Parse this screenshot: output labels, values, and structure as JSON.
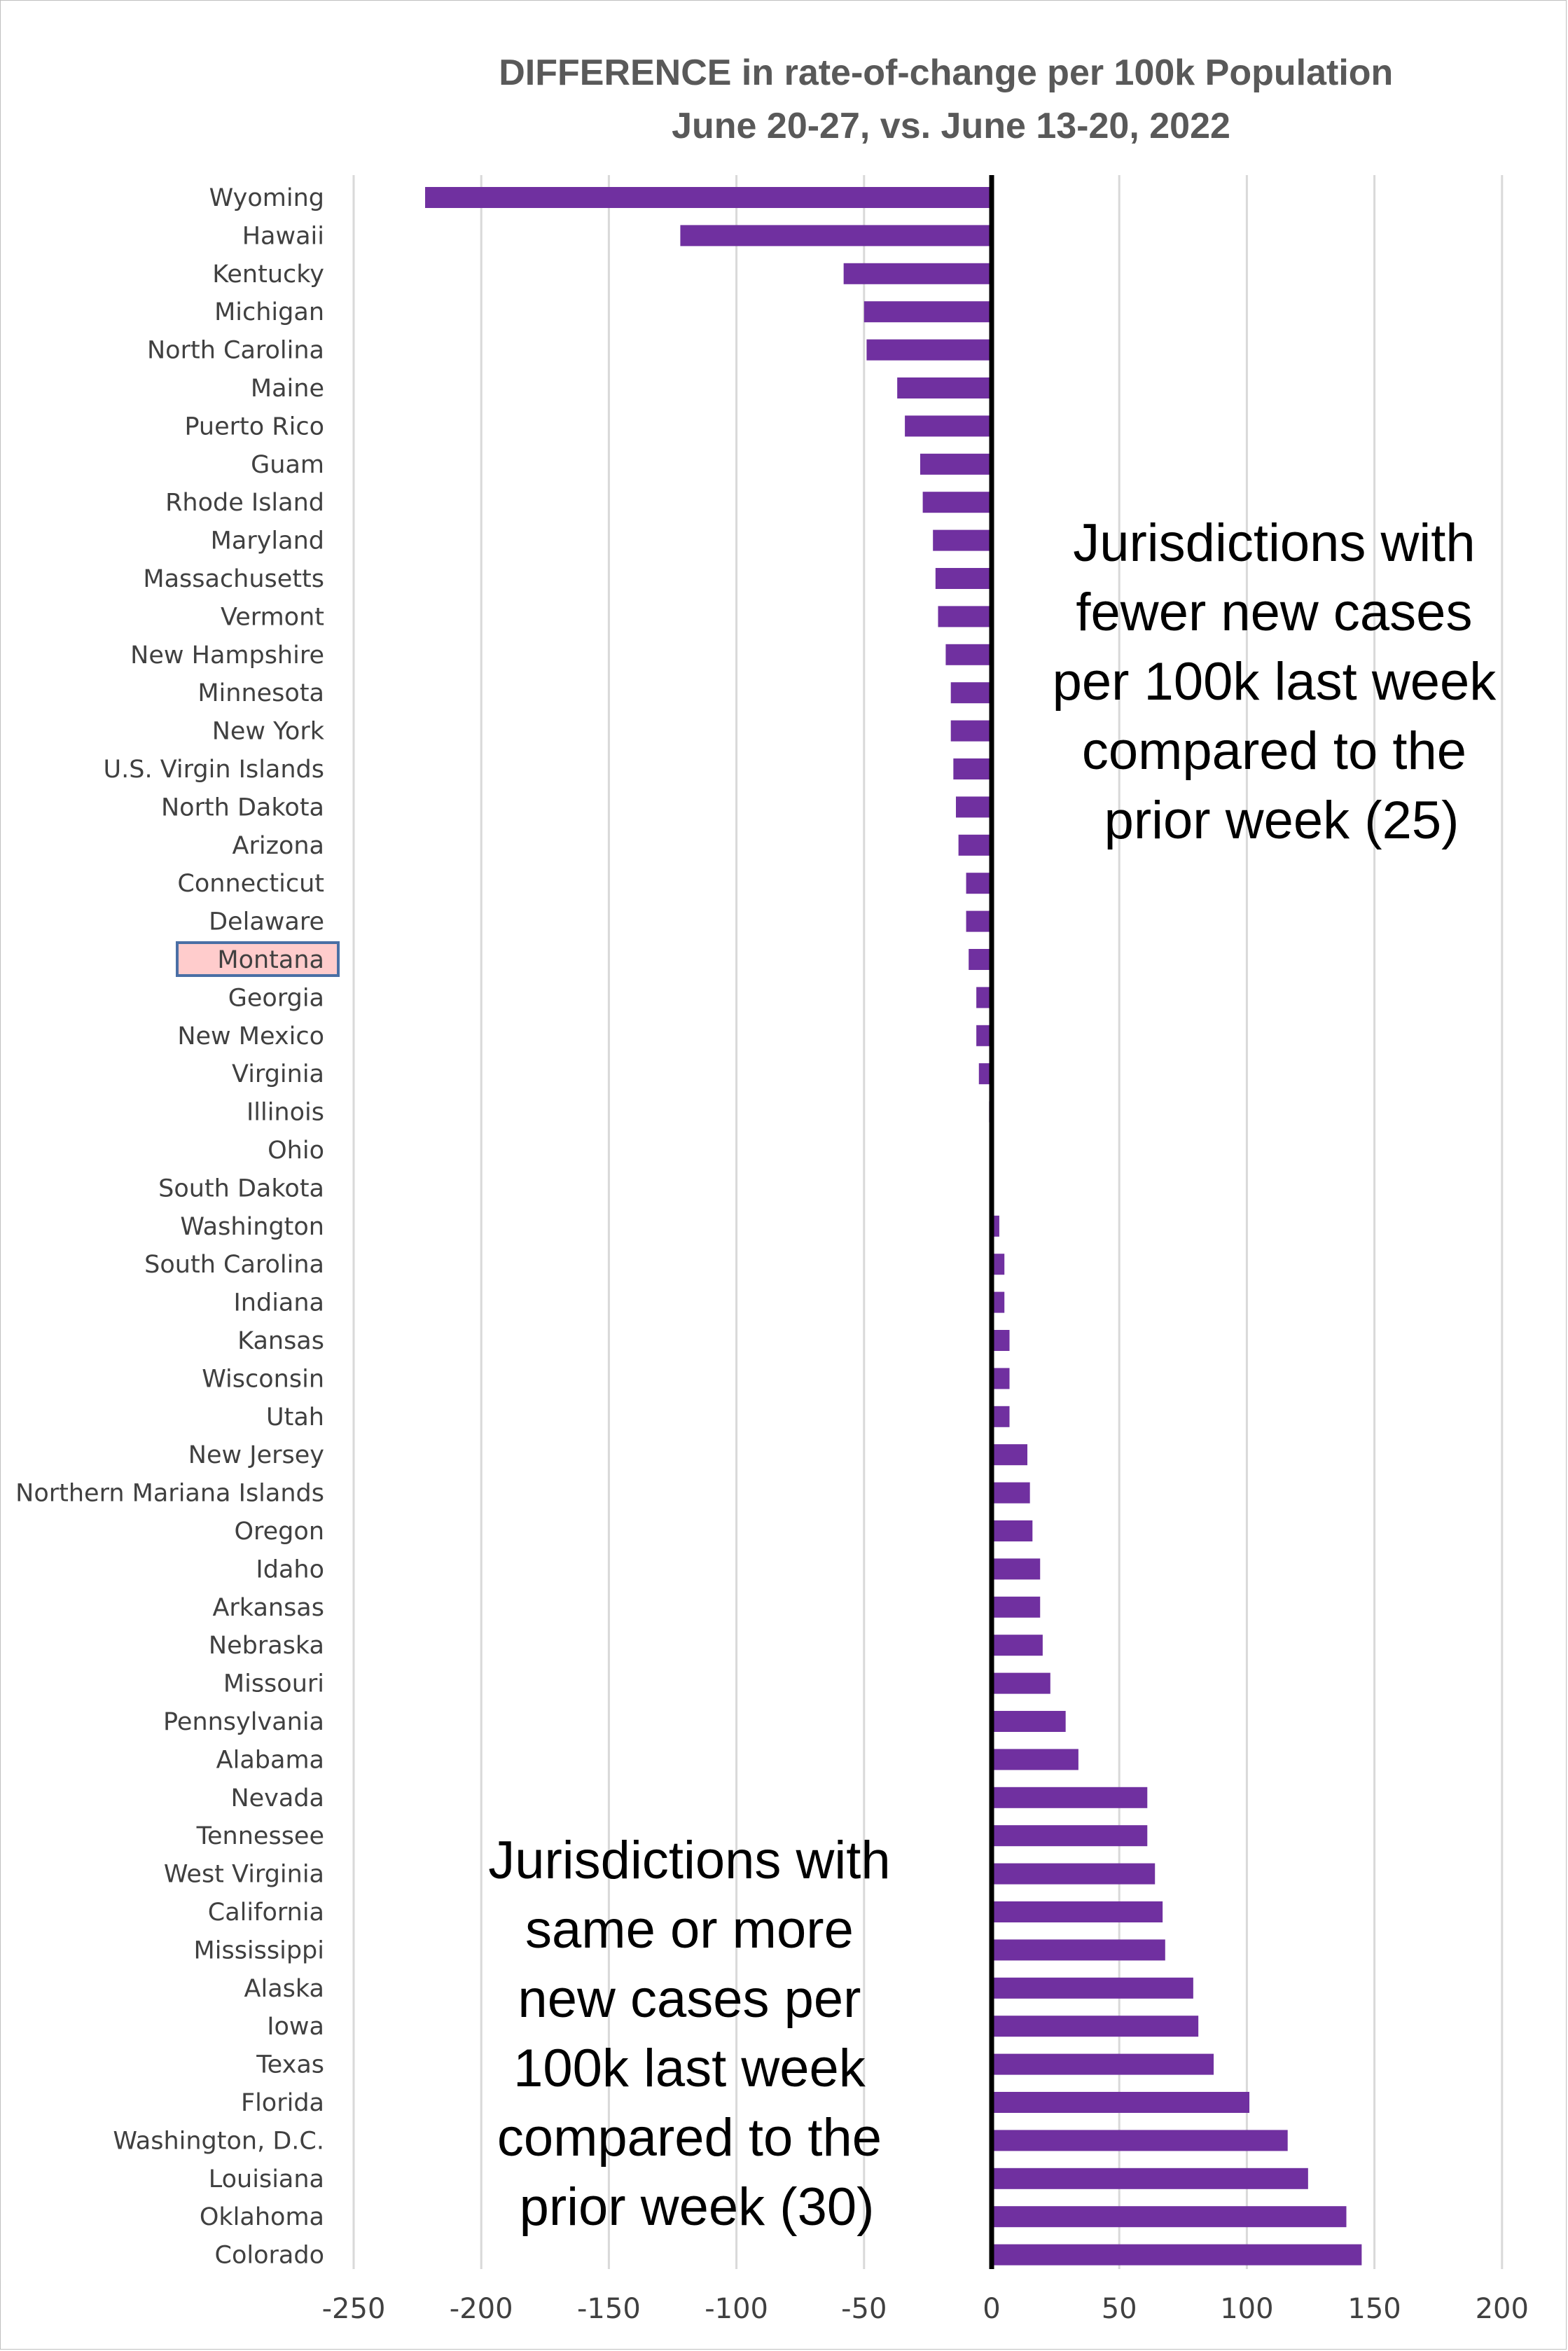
{
  "chart_data": {
    "type": "bar",
    "orientation": "horizontal",
    "title": [
      "DIFFERENCE in rate-of-change per 100k Population",
      "June 20-27, vs. June 13-20, 2022"
    ],
    "xlabel": "",
    "ylabel": "",
    "xlim": [
      -250,
      200
    ],
    "xticks": [
      -250,
      -200,
      -150,
      -100,
      -50,
      0,
      50,
      100,
      150,
      200
    ],
    "grid": true,
    "legend": "none",
    "bar_color": "#7030A0",
    "highlight_color": "#FFCCCC",
    "highlight_border_color": "#4A6FA5",
    "highlight_category": "Montana",
    "categories": [
      "Wyoming",
      "Hawaii",
      "Kentucky",
      "Michigan",
      "North Carolina",
      "Maine",
      "Puerto Rico",
      "Guam",
      "Rhode Island",
      "Maryland",
      "Massachusetts",
      "Vermont",
      "New Hampshire",
      "Minnesota",
      "New York",
      "U.S. Virgin Islands",
      "North Dakota",
      "Arizona",
      "Connecticut",
      "Delaware",
      "Montana",
      "Georgia",
      "New Mexico",
      "Virginia",
      "Illinois",
      "Ohio",
      "South Dakota",
      "Washington",
      "South Carolina",
      "Indiana",
      "Kansas",
      "Wisconsin",
      "Utah",
      "New Jersey",
      "Northern Mariana Islands",
      "Oregon",
      "Idaho",
      "Arkansas",
      "Nebraska",
      "Missouri",
      "Pennsylvania",
      "Alabama",
      "Nevada",
      "Tennessee",
      "West Virginia",
      "California",
      "Mississippi",
      "Alaska",
      "Iowa",
      "Texas",
      "Florida",
      "Washington, D.C.",
      "Louisiana",
      "Oklahoma",
      "Colorado"
    ],
    "values": [
      -222,
      -122,
      -58,
      -50,
      -49,
      -37,
      -34,
      -28,
      -27,
      -23,
      -22,
      -21,
      -18,
      -16,
      -16,
      -15,
      -14,
      -13,
      -10,
      -10,
      -9,
      -6,
      -6,
      -5,
      -1,
      0,
      0,
      3,
      5,
      5,
      7,
      7,
      7,
      14,
      15,
      16,
      19,
      19,
      20,
      23,
      29,
      34,
      61,
      61,
      64,
      67,
      68,
      79,
      81,
      87,
      101,
      116,
      124,
      139,
      145
    ],
    "annotations": [
      "Jurisdictions with fewer new cases per 100k last week compared to the prior week (25)",
      "Jurisdictions with same or more new cases per 100k last week compared to the prior week (30)"
    ]
  },
  "annotation_lines": {
    "fewer": [
      "Jurisdictions with",
      "fewer new cases",
      "per 100k last week",
      "compared to the",
      "prior week (25)"
    ],
    "more": [
      "Jurisdictions with",
      "same or more",
      "new cases per",
      "100k last week",
      "compared to the",
      "prior week (30)"
    ]
  }
}
